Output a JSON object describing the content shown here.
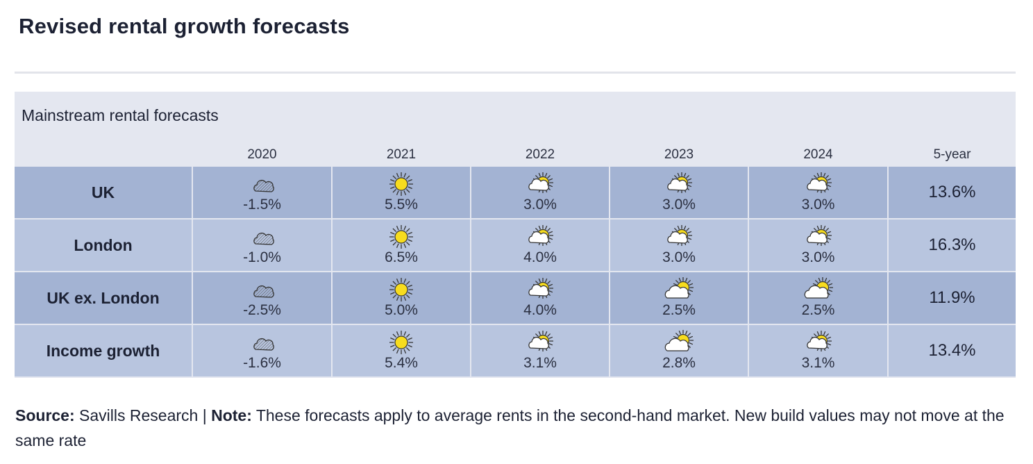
{
  "title": "Revised rental growth forecasts",
  "footer": {
    "source_label": "Source:",
    "source_text": " Savills Research | ",
    "note_label": "Note:",
    "note_text": " These forecasts apply to average rents in the second-hand market. New build values may not move at the same rate"
  },
  "colors": {
    "row_dark": "#a3b3d3",
    "row_light": "#b8c5df",
    "panel": "#e4e7f0",
    "sun": "#f7dc1e"
  },
  "chart_data": {
    "type": "table",
    "title": "Mainstream rental forecasts",
    "columns": [
      "2020",
      "2021",
      "2022",
      "2023",
      "2024",
      "5-year"
    ],
    "rows": [
      {
        "label": "UK",
        "values": [
          "-1.5%",
          "5.5%",
          "3.0%",
          "3.0%",
          "3.0%"
        ],
        "icons": [
          "cloud-icon",
          "sun-icon",
          "sun-cloud-icon",
          "sun-cloud-icon",
          "sun-cloud-icon"
        ],
        "total": "13.6%"
      },
      {
        "label": "London",
        "values": [
          "-1.0%",
          "6.5%",
          "4.0%",
          "3.0%",
          "3.0%"
        ],
        "icons": [
          "cloud-icon",
          "sun-icon",
          "sun-cloud-icon",
          "sun-cloud-icon",
          "sun-cloud-icon"
        ],
        "total": "16.3%"
      },
      {
        "label": "UK ex. London",
        "values": [
          "-2.5%",
          "5.0%",
          "4.0%",
          "2.5%",
          "2.5%"
        ],
        "icons": [
          "cloud-icon",
          "sun-icon",
          "sun-cloud-icon",
          "cloud-sun-icon",
          "cloud-sun-icon"
        ],
        "total": "11.9%"
      },
      {
        "label": "Income growth",
        "values": [
          "-1.6%",
          "5.4%",
          "3.1%",
          "2.8%",
          "3.1%"
        ],
        "icons": [
          "cloud-icon",
          "sun-icon",
          "sun-cloud-icon",
          "cloud-sun-icon",
          "sun-cloud-icon"
        ],
        "total": "13.4%"
      }
    ]
  }
}
